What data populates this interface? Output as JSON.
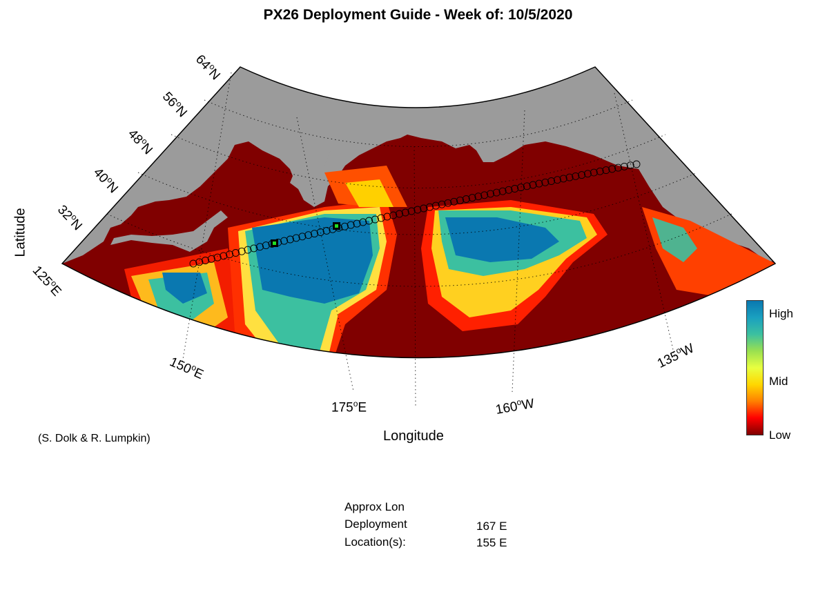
{
  "title": "PX26 Deployment Guide - Week of: 10/5/2020",
  "axes": {
    "xlabel": "Longitude",
    "ylabel": "Latitude"
  },
  "credit": "(S. Dolk & R. Lumpkin)",
  "lat_ticks": [
    {
      "deg": "64",
      "hemi": "N"
    },
    {
      "deg": "56",
      "hemi": "N"
    },
    {
      "deg": "48",
      "hemi": "N"
    },
    {
      "deg": "40",
      "hemi": "N"
    },
    {
      "deg": "32",
      "hemi": "N"
    }
  ],
  "lon_ticks": [
    {
      "deg": "125",
      "hemi": "E"
    },
    {
      "deg": "150",
      "hemi": "E"
    },
    {
      "deg": "175",
      "hemi": "E"
    },
    {
      "deg": "160",
      "hemi": "W"
    },
    {
      "deg": "135",
      "hemi": "W"
    }
  ],
  "colorbar": {
    "labels": {
      "high": "High",
      "mid": "Mid",
      "low": "Low"
    },
    "colors": [
      "#800000",
      "#ff0000",
      "#ff8000",
      "#ffd700",
      "#e8ff40",
      "#9ae050",
      "#3cc0a0",
      "#1aa0c0",
      "#0a78b0"
    ]
  },
  "deployment": {
    "header": "Approx Lon",
    "line1": "Deployment",
    "line2": "Location(s):",
    "locations": [
      "167 E",
      "155 E"
    ]
  },
  "colors": {
    "land": "#9b9b9b",
    "ocean_low": "#800000",
    "marker_green": "#22dd22"
  }
}
